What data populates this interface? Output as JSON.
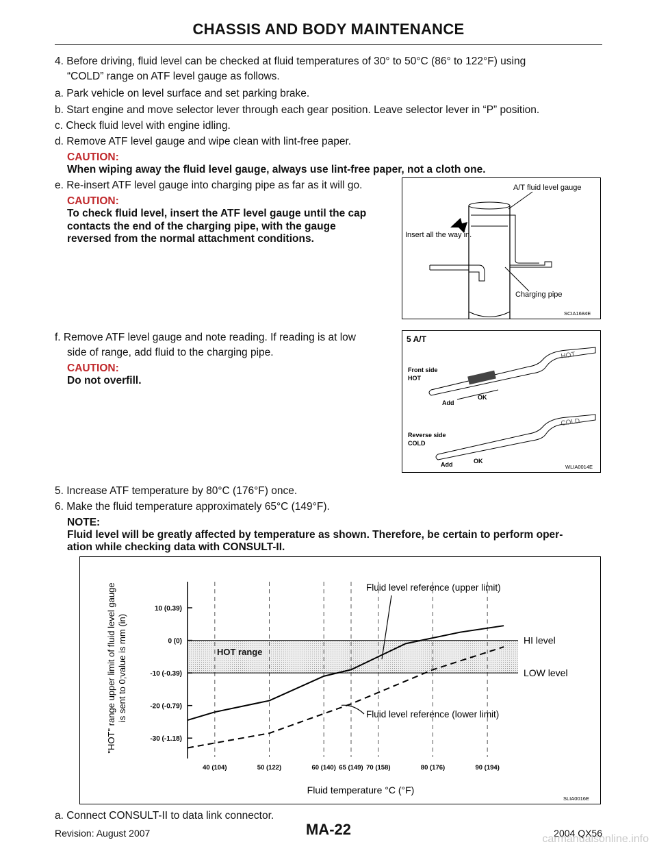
{
  "header": {
    "title": "CHASSIS AND BODY MAINTENANCE"
  },
  "steps": {
    "s4": "4. Before driving, fluid level can be checked at fluid temperatures of 30° to 50°C (86° to 122°F) using",
    "s4b": "“COLD” range on ATF level gauge as follows.",
    "a": "a. Park vehicle on level surface and set parking brake.",
    "b": "b. Start engine and move selector lever through each gear position. Leave selector lever in “P” position.",
    "c": "c. Check fluid level with engine idling.",
    "d": "d. Remove ATF level gauge and wipe clean with lint-free paper.",
    "d_caution_head": "CAUTION:",
    "d_caution": "When wiping away the fluid level gauge, always use lint-free paper, not a cloth one.",
    "e": "e. Re-insert ATF level gauge into charging pipe as far as it will go.",
    "e_caution_head": "CAUTION:",
    "e_caution_1": "To check fluid level, insert the ATF level gauge until the cap",
    "e_caution_2": "contacts the end of the charging pipe, with the gauge",
    "e_caution_3": "reversed from the normal attachment conditions.",
    "f_1": "f. Remove ATF level gauge and note reading. If reading is at low",
    "f_2": "side of range, add fluid to the charging pipe.",
    "f_caution_head": "CAUTION:",
    "f_caution": "Do not overfill.",
    "s5": "5. Increase ATF temperature by 80°C (176°F) once.",
    "s6": "6. Make the fluid temperature approximately 65°C (149°F).",
    "note_head": "NOTE:",
    "note_1": "Fluid level will be greatly affected by temperature as shown. Therefore, be certain to perform oper-",
    "note_2": "ation while checking data with CONSULT-II.",
    "s_a": "a. Connect CONSULT-II to data link connector."
  },
  "fig1": {
    "label_gauge": "A/T fluid level gauge",
    "label_insert": "Insert all the way in.",
    "label_pipe": "Charging pipe",
    "code": "SCIA1684E"
  },
  "fig2": {
    "title": "5 A/T",
    "front_1": "Front side",
    "front_2": "HOT",
    "reverse_1": "Reverse side",
    "reverse_2": "COLD",
    "add": "Add",
    "ok": "OK",
    "hot_text": "HOT",
    "cold_text": "COLD",
    "code": "WLIA0014E"
  },
  "chart_data": {
    "type": "line",
    "xlabel": "Fluid temperature °C (°F)",
    "ylabel_1": "\"HOT\" range upper limit of fluid level gauge",
    "ylabel_2": "is sent to 0;value is mm (in)",
    "x_ticks": [
      {
        "value": 40,
        "label": "40 (104)"
      },
      {
        "value": 50,
        "label": "50 (122)"
      },
      {
        "value": 60,
        "label": "60 (140)"
      },
      {
        "value": 65,
        "label": "65 (149)"
      },
      {
        "value": 70,
        "label": "70 (158)"
      },
      {
        "value": 80,
        "label": "80 (176)"
      },
      {
        "value": 90,
        "label": "90 (194)"
      }
    ],
    "y_ticks": [
      {
        "value": 10,
        "label": "10 (0.39)"
      },
      {
        "value": 0,
        "label": "0 (0)"
      },
      {
        "value": -10,
        "label": "-10 (-0.39)"
      },
      {
        "value": -20,
        "label": "-20 (-0.79)"
      },
      {
        "value": -30,
        "label": "-30 (-1.18)"
      }
    ],
    "xlim": [
      35,
      95
    ],
    "ylim": [
      -35,
      18
    ],
    "series": [
      {
        "name": "Fluid level reference (upper limit)",
        "style": "solid",
        "x": [
          35,
          40,
          50,
          60,
          65,
          70,
          75,
          85,
          93
        ],
        "y": [
          -24.5,
          -22,
          -18.5,
          -11,
          -9,
          -5,
          -1,
          2.5,
          4.5
        ]
      },
      {
        "name": "Fluid level reference (lower limit)",
        "style": "dashed",
        "x": [
          35,
          50,
          65,
          80,
          93
        ],
        "y": [
          -33,
          -28.5,
          -19.5,
          -9,
          -2
        ]
      }
    ],
    "band": {
      "from": -10,
      "to": 0,
      "label": "HOT range"
    },
    "band_labels": {
      "hi": "HI level",
      "low": "LOW level"
    },
    "code": "SLIA0016E"
  },
  "footer": {
    "revision": "Revision: August 2007",
    "page": "MA-22",
    "model": "2004 QX56",
    "watermark": "carmanualsonline.info"
  }
}
